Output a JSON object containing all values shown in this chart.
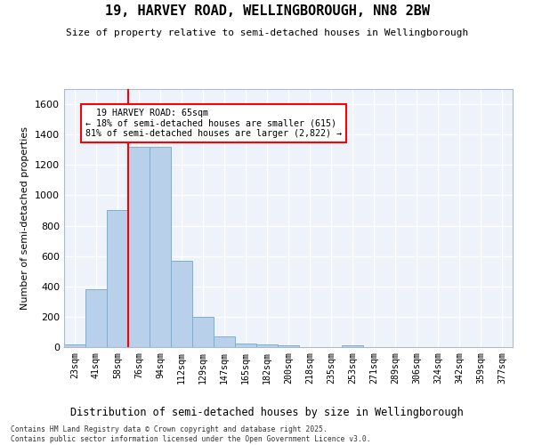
{
  "title": "19, HARVEY ROAD, WELLINGBOROUGH, NN8 2BW",
  "subtitle": "Size of property relative to semi-detached houses in Wellingborough",
  "xlabel": "Distribution of semi-detached houses by size in Wellingborough",
  "ylabel": "Number of semi-detached properties",
  "bins": [
    "23sqm",
    "41sqm",
    "58sqm",
    "76sqm",
    "94sqm",
    "112sqm",
    "129sqm",
    "147sqm",
    "165sqm",
    "182sqm",
    "200sqm",
    "218sqm",
    "235sqm",
    "253sqm",
    "271sqm",
    "289sqm",
    "306sqm",
    "324sqm",
    "342sqm",
    "359sqm",
    "377sqm"
  ],
  "values": [
    15,
    380,
    900,
    1320,
    1320,
    570,
    200,
    70,
    25,
    20,
    10,
    0,
    0,
    10,
    0,
    0,
    0,
    0,
    0,
    0,
    0
  ],
  "bar_color": "#b8d0ea",
  "bar_edge_color": "#7aafd4",
  "red_line_x": 2.5,
  "red_line_label": "19 HARVEY ROAD: 65sqm",
  "pct_smaller": 18,
  "pct_larger": 81,
  "count_smaller": 615,
  "count_larger": 2822,
  "ylim": [
    0,
    1700
  ],
  "yticks": [
    0,
    200,
    400,
    600,
    800,
    1000,
    1200,
    1400,
    1600
  ],
  "bg_color": "#ffffff",
  "plot_bg_color": "#eef2fa",
  "grid_color": "#ffffff",
  "footnote": "Contains HM Land Registry data © Crown copyright and database right 2025.\nContains public sector information licensed under the Open Government Licence v3.0."
}
